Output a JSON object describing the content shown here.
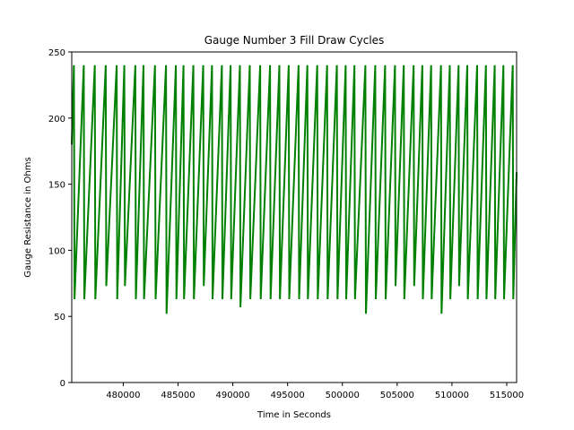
{
  "chart_data": {
    "type": "line",
    "title": "Gauge Number 3 Fill Draw Cycles",
    "xlabel": "Time in Seconds",
    "ylabel": "Gauge Resistance in Ohms",
    "xlim": [
      475300,
      515900
    ],
    "ylim": [
      0,
      250
    ],
    "x_ticks": [
      480000,
      485000,
      490000,
      495000,
      500000,
      505000,
      510000,
      515000
    ],
    "x_tick_labels": [
      "480000",
      "485000",
      "490000",
      "495000",
      "500000",
      "505000",
      "510000",
      "515000"
    ],
    "y_ticks": [
      0,
      50,
      100,
      150,
      200,
      250
    ],
    "y_tick_labels": [
      "0",
      "50",
      "100",
      "150",
      "200",
      "250"
    ],
    "grid": false,
    "legend": "none",
    "series": [
      {
        "color": "#008000",
        "x": [
          475300,
          475500,
          475550,
          476400,
          476450,
          477400,
          477450,
          478400,
          478450,
          479400,
          479450,
          480100,
          480150,
          481100,
          481150,
          481850,
          481900,
          482900,
          482950,
          483900,
          483950,
          484800,
          484850,
          485500,
          485550,
          486400,
          486450,
          487300,
          487350,
          488100,
          488150,
          489000,
          489050,
          489800,
          489850,
          490650,
          490700,
          491550,
          491600,
          492500,
          492550,
          493400,
          493450,
          494250,
          494300,
          495100,
          495150,
          496000,
          496050,
          496800,
          496850,
          497700,
          497750,
          498600,
          498650,
          499500,
          499550,
          500300,
          500350,
          501100,
          501150,
          502100,
          502150,
          503000,
          503050,
          503900,
          503950,
          504800,
          504850,
          505600,
          505650,
          506500,
          506550,
          507300,
          507350,
          508100,
          508150,
          509000,
          509050,
          509800,
          509850,
          510600,
          510650,
          511400,
          511450,
          512300,
          512350,
          513100,
          513150,
          513900,
          513950,
          514700,
          514750,
          515550,
          515600,
          515900
        ],
        "y": [
          180,
          240,
          63,
          240,
          63,
          240,
          63,
          240,
          73,
          240,
          63,
          240,
          73,
          240,
          63,
          240,
          63,
          240,
          63,
          240,
          52,
          240,
          63,
          240,
          63,
          240,
          63,
          240,
          73,
          240,
          63,
          240,
          63,
          240,
          63,
          240,
          57,
          240,
          63,
          240,
          63,
          240,
          63,
          240,
          63,
          240,
          63,
          240,
          63,
          240,
          63,
          240,
          63,
          240,
          63,
          240,
          63,
          240,
          63,
          240,
          63,
          240,
          52,
          240,
          63,
          240,
          63,
          240,
          73,
          240,
          63,
          240,
          73,
          240,
          63,
          240,
          63,
          240,
          52,
          240,
          63,
          240,
          73,
          240,
          63,
          240,
          63,
          240,
          63,
          240,
          63,
          240,
          63,
          240,
          63,
          159
        ]
      }
    ]
  }
}
